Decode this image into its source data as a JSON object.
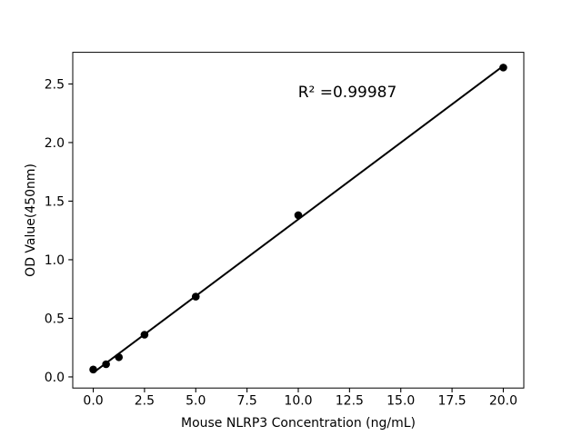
{
  "chart_data": {
    "type": "scatter",
    "title": "",
    "xlabel": "Mouse NLRP3 Concentration (ng/mL)",
    "ylabel": "OD Value(450nm)",
    "annotation": "R² =0.99987",
    "x": [
      0,
      0.625,
      1.25,
      2.5,
      5,
      10,
      20
    ],
    "y": [
      0.063,
      0.108,
      0.168,
      0.36,
      0.685,
      1.38,
      2.64
    ],
    "trend_line": {
      "kind": "linear_fit",
      "x_start": 0,
      "x_end": 20
    },
    "xlim": [
      -1,
      21
    ],
    "ylim": [
      -0.095,
      2.77
    ],
    "x_tick_values": [
      0,
      2.5,
      5,
      7.5,
      10,
      12.5,
      15,
      17.5,
      20
    ],
    "x_tick_labels": [
      "0.0",
      "2.5",
      "5.0",
      "7.5",
      "10.0",
      "12.5",
      "15.0",
      "17.5",
      "20.0"
    ],
    "y_tick_values": [
      0,
      0.5,
      1,
      1.5,
      2,
      2.5
    ],
    "y_tick_labels": [
      "0.0",
      "0.5",
      "1.0",
      "1.5",
      "2.0",
      "2.5"
    ],
    "grid": false,
    "legend_position": "none",
    "colors": {
      "points": "#000000",
      "line": "#000000",
      "text": "#000000",
      "frame": "#000000",
      "background": "#ffffff"
    }
  }
}
